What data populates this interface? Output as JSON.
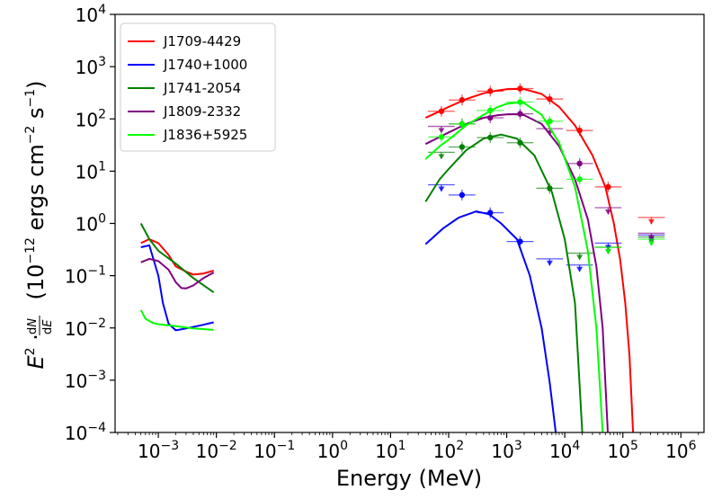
{
  "chart_data": {
    "type": "line",
    "title": "",
    "xlabel": "Energy (MeV)",
    "ylabel": "E^2 · dN/dE (10^-12 ergs cm^-2 s^-1)",
    "xscale": "log",
    "yscale": "log",
    "xlim": [
      0.00018,
      2500000
    ],
    "ylim": [
      0.0001,
      10000
    ],
    "x_ticks": [
      {
        "value": 0.001,
        "label": "10",
        "exp": "−3"
      },
      {
        "value": 0.01,
        "label": "10",
        "exp": "−2"
      },
      {
        "value": 0.1,
        "label": "10",
        "exp": "−1"
      },
      {
        "value": 1,
        "label": "10",
        "exp": "0"
      },
      {
        "value": 10,
        "label": "10",
        "exp": "1"
      },
      {
        "value": 100,
        "label": "10",
        "exp": "2"
      },
      {
        "value": 1000,
        "label": "10",
        "exp": "3"
      },
      {
        "value": 10000,
        "label": "10",
        "exp": "4"
      },
      {
        "value": 100000,
        "label": "10",
        "exp": "5"
      },
      {
        "value": 1000000,
        "label": "10",
        "exp": "6"
      }
    ],
    "y_ticks": [
      {
        "value": 0.0001,
        "label": "10",
        "exp": "−4"
      },
      {
        "value": 0.001,
        "label": "10",
        "exp": "−3"
      },
      {
        "value": 0.01,
        "label": "10",
        "exp": "−2"
      },
      {
        "value": 0.1,
        "label": "10",
        "exp": "−1"
      },
      {
        "value": 1,
        "label": "10",
        "exp": "0"
      },
      {
        "value": 10,
        "label": "10",
        "exp": "1"
      },
      {
        "value": 100,
        "label": "10",
        "exp": "2"
      },
      {
        "value": 1000,
        "label": "10",
        "exp": "3"
      },
      {
        "value": 10000,
        "label": "10",
        "exp": "4"
      }
    ],
    "legend_position": "top-left",
    "series": [
      {
        "name": "J1709-4429",
        "color": "#ff0000",
        "xray_curve": [
          [
            0.0005,
            0.42
          ],
          [
            0.0007,
            0.5
          ],
          [
            0.001,
            0.42
          ],
          [
            0.0015,
            0.25
          ],
          [
            0.002,
            0.15
          ],
          [
            0.003,
            0.12
          ],
          [
            0.004,
            0.105
          ],
          [
            0.006,
            0.11
          ],
          [
            0.009,
            0.125
          ]
        ],
        "gamma_curve": [
          [
            40,
            105
          ],
          [
            70,
            140
          ],
          [
            100,
            170
          ],
          [
            200,
            240
          ],
          [
            400,
            310
          ],
          [
            700,
            350
          ],
          [
            1000,
            370
          ],
          [
            1500,
            375
          ],
          [
            2000,
            370
          ],
          [
            4000,
            300
          ],
          [
            8000,
            170
          ],
          [
            15000,
            75
          ],
          [
            30000,
            20
          ],
          [
            50000,
            5
          ],
          [
            70000,
            1
          ],
          [
            90000,
            0.2
          ],
          [
            110000,
            0.03
          ],
          [
            130000,
            0.003
          ],
          [
            150000,
            0.0001
          ]
        ],
        "points": [
          {
            "x": 75,
            "y": 140,
            "upper": false
          },
          {
            "x": 170,
            "y": 230,
            "upper": false
          },
          {
            "x": 520,
            "y": 340,
            "upper": false
          },
          {
            "x": 1700,
            "y": 380,
            "upper": false
          },
          {
            "x": 5500,
            "y": 240,
            "upper": false
          },
          {
            "x": 18000,
            "y": 60,
            "upper": false
          },
          {
            "x": 56000,
            "y": 5,
            "upper": false
          },
          {
            "x": 310000,
            "y": 1.3,
            "upper": true
          }
        ]
      },
      {
        "name": "J1740+1000",
        "color": "#0000ff",
        "xray_curve": [
          [
            0.0005,
            0.35
          ],
          [
            0.0007,
            0.38
          ],
          [
            0.001,
            0.1
          ],
          [
            0.0012,
            0.03
          ],
          [
            0.0015,
            0.012
          ],
          [
            0.002,
            0.009
          ],
          [
            0.003,
            0.0098
          ],
          [
            0.006,
            0.0115
          ],
          [
            0.009,
            0.0128
          ]
        ],
        "gamma_curve": [
          [
            40,
            0.4
          ],
          [
            80,
            0.8
          ],
          [
            150,
            1.3
          ],
          [
            300,
            1.7
          ],
          [
            500,
            1.5
          ],
          [
            800,
            1.0
          ],
          [
            1500,
            0.5
          ],
          [
            2500,
            0.1
          ],
          [
            4000,
            0.01
          ],
          [
            5500,
            0.0009
          ],
          [
            7000,
            0.0001
          ]
        ],
        "points": [
          {
            "x": 75,
            "y": 5.5,
            "upper": true
          },
          {
            "x": 170,
            "y": 3.5,
            "upper": false
          },
          {
            "x": 520,
            "y": 1.6,
            "upper": false
          },
          {
            "x": 1700,
            "y": 0.45,
            "upper": false
          },
          {
            "x": 5500,
            "y": 0.21,
            "upper": true
          },
          {
            "x": 18000,
            "y": 0.16,
            "upper": true
          },
          {
            "x": 56000,
            "y": 0.42,
            "upper": true
          },
          {
            "x": 310000,
            "y": 0.6,
            "upper": true
          }
        ]
      },
      {
        "name": "J1741-2054",
        "color": "#008000",
        "xray_curve": [
          [
            0.0005,
            1.0
          ],
          [
            0.0007,
            0.5
          ],
          [
            0.001,
            0.3
          ],
          [
            0.002,
            0.17
          ],
          [
            0.004,
            0.09
          ],
          [
            0.009,
            0.048
          ]
        ],
        "gamma_curve": [
          [
            40,
            2.6
          ],
          [
            70,
            7
          ],
          [
            100,
            11
          ],
          [
            200,
            25
          ],
          [
            400,
            42
          ],
          [
            800,
            50
          ],
          [
            1500,
            42
          ],
          [
            3000,
            20
          ],
          [
            6000,
            4
          ],
          [
            10000,
            0.5
          ],
          [
            15000,
            0.03
          ],
          [
            20000,
            0.0001
          ]
        ],
        "points": [
          {
            "x": 75,
            "y": 23,
            "upper": true
          },
          {
            "x": 170,
            "y": 29,
            "upper": false
          },
          {
            "x": 520,
            "y": 44,
            "upper": false
          },
          {
            "x": 1700,
            "y": 35,
            "upper": false
          },
          {
            "x": 5500,
            "y": 4.7,
            "upper": false
          },
          {
            "x": 18000,
            "y": 0.27,
            "upper": true
          },
          {
            "x": 56000,
            "y": 0.35,
            "upper": true
          },
          {
            "x": 310000,
            "y": 0.55,
            "upper": true
          }
        ]
      },
      {
        "name": "J1809-2332",
        "color": "#800080",
        "xray_curve": [
          [
            0.0005,
            0.18
          ],
          [
            0.0007,
            0.21
          ],
          [
            0.001,
            0.19
          ],
          [
            0.0015,
            0.13
          ],
          [
            0.002,
            0.075
          ],
          [
            0.0025,
            0.058
          ],
          [
            0.003,
            0.057
          ],
          [
            0.004,
            0.065
          ],
          [
            0.006,
            0.09
          ],
          [
            0.009,
            0.115
          ]
        ],
        "gamma_curve": [
          [
            40,
            33
          ],
          [
            70,
            45
          ],
          [
            100,
            55
          ],
          [
            200,
            80
          ],
          [
            400,
            105
          ],
          [
            700,
            118
          ],
          [
            1000,
            122
          ],
          [
            1500,
            123
          ],
          [
            2000,
            118
          ],
          [
            4000,
            80
          ],
          [
            8000,
            30
          ],
          [
            15000,
            7
          ],
          [
            25000,
            1.2
          ],
          [
            35000,
            0.15
          ],
          [
            45000,
            0.01
          ],
          [
            55000,
            0.0001
          ]
        ],
        "points": [
          {
            "x": 75,
            "y": 72,
            "upper": true
          },
          {
            "x": 170,
            "y": 80,
            "upper": false
          },
          {
            "x": 520,
            "y": 105,
            "upper": false
          },
          {
            "x": 1700,
            "y": 125,
            "upper": false
          },
          {
            "x": 5500,
            "y": 65,
            "upper": true
          },
          {
            "x": 18000,
            "y": 14,
            "upper": false
          },
          {
            "x": 56000,
            "y": 2.0,
            "upper": true
          },
          {
            "x": 310000,
            "y": 0.65,
            "upper": true
          }
        ]
      },
      {
        "name": "J1836+5925",
        "color": "#00ff00",
        "xray_curve": [
          [
            0.0005,
            0.022
          ],
          [
            0.0006,
            0.015
          ],
          [
            0.0008,
            0.0125
          ],
          [
            0.001,
            0.0118
          ],
          [
            0.002,
            0.0108
          ],
          [
            0.004,
            0.0098
          ],
          [
            0.009,
            0.0092
          ]
        ],
        "gamma_curve": [
          [
            40,
            17
          ],
          [
            70,
            30
          ],
          [
            100,
            40
          ],
          [
            200,
            75
          ],
          [
            400,
            120
          ],
          [
            700,
            170
          ],
          [
            1000,
            195
          ],
          [
            1500,
            205
          ],
          [
            2000,
            200
          ],
          [
            4000,
            120
          ],
          [
            8000,
            35
          ],
          [
            15000,
            5
          ],
          [
            25000,
            0.3
          ],
          [
            35000,
            0.01
          ],
          [
            45000,
            0.0001
          ]
        ],
        "points": [
          {
            "x": 75,
            "y": 45,
            "upper": false
          },
          {
            "x": 170,
            "y": 80,
            "upper": false
          },
          {
            "x": 520,
            "y": 145,
            "upper": false
          },
          {
            "x": 1700,
            "y": 210,
            "upper": false
          },
          {
            "x": 5500,
            "y": 90,
            "upper": false
          },
          {
            "x": 18000,
            "y": 7,
            "upper": false
          },
          {
            "x": 56000,
            "y": 0.35,
            "upper": true
          },
          {
            "x": 310000,
            "y": 0.5,
            "upper": true
          }
        ]
      }
    ]
  }
}
